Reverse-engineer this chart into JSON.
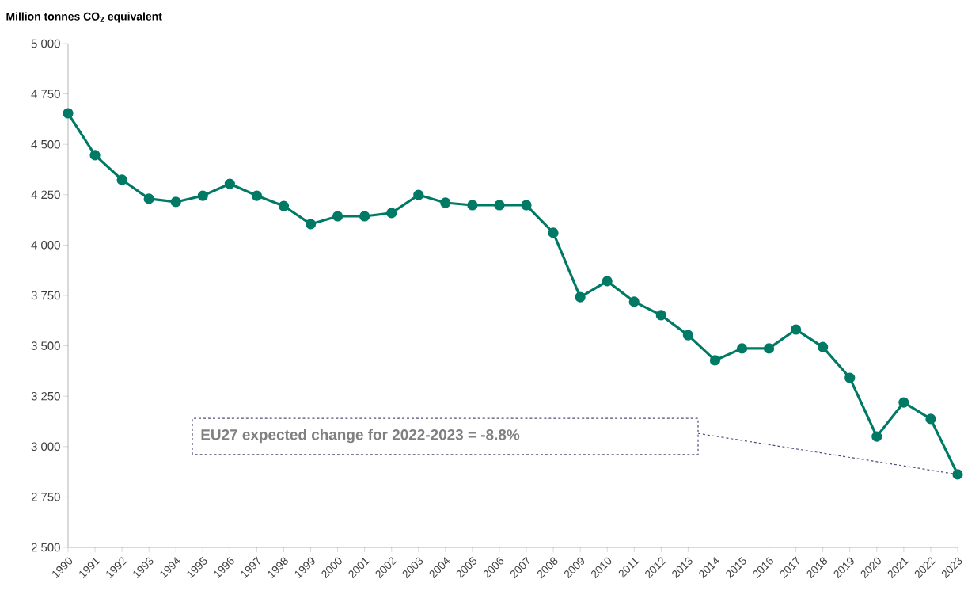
{
  "chart_data": {
    "type": "line",
    "ylabel": "Million tonnes CO$_{2}$ equivalent",
    "categories": [
      "1990",
      "1991",
      "1992",
      "1993",
      "1994",
      "1995",
      "1996",
      "1997",
      "1998",
      "1999",
      "2000",
      "2001",
      "2002",
      "2003",
      "2004",
      "2005",
      "2006",
      "2007",
      "2008",
      "2009",
      "2010",
      "2011",
      "2012",
      "2013",
      "2014",
      "2015",
      "2016",
      "2017",
      "2018",
      "2019",
      "2020",
      "2021",
      "2022",
      "2023"
    ],
    "values": [
      4654,
      4446,
      4324,
      4230,
      4214,
      4245,
      4304,
      4245,
      4194,
      4104,
      4143,
      4143,
      4159,
      4249,
      4210,
      4198,
      4198,
      4198,
      4061,
      3742,
      3821,
      3719,
      3652,
      3553,
      3428,
      3487,
      3487,
      3581,
      3494,
      3341,
      3050,
      3219,
      3137,
      2862
    ],
    "color": "#007a65",
    "marker": "circle",
    "line_style": "solid",
    "grid": false,
    "ylim": [
      2500,
      5000
    ],
    "yticks": [
      {
        "value": 2500,
        "label": "2 500"
      },
      {
        "value": 2750,
        "label": "2 750"
      },
      {
        "value": 3000,
        "label": "3 000"
      },
      {
        "value": 3250,
        "label": "3 250"
      },
      {
        "value": 3500,
        "label": "3 500"
      },
      {
        "value": 3750,
        "label": "3 750"
      },
      {
        "value": 4000,
        "label": "4 000"
      },
      {
        "value": 4250,
        "label": "4 250"
      },
      {
        "value": 4500,
        "label": "4 500"
      },
      {
        "value": 4750,
        "label": "4 750"
      },
      {
        "value": 5000,
        "label": "5 000"
      }
    ],
    "annotations": [
      "EU27 expected change for 2022-2023 = -8.8%"
    ]
  }
}
